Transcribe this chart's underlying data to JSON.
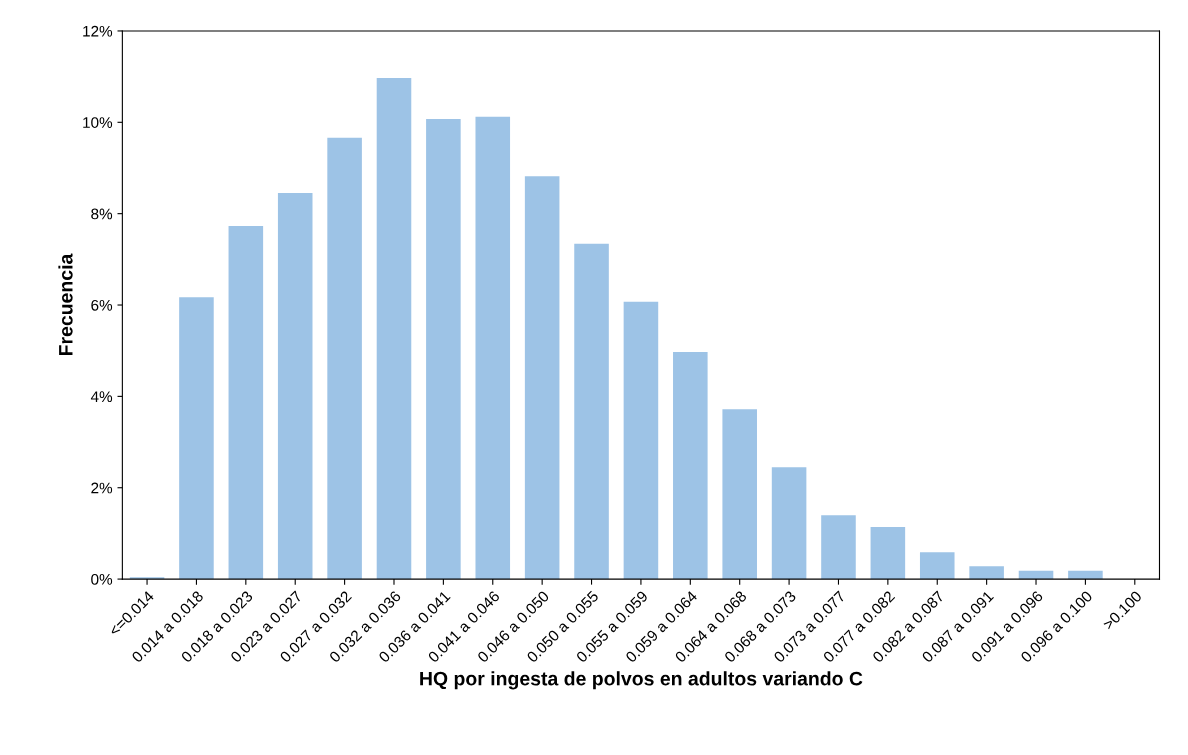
{
  "chart_data": {
    "type": "bar",
    "xlabel": "HQ por ingesta de polvos en adultos variando C",
    "ylabel": "Frecuencia",
    "categories": [
      "<=0.014",
      "0.014 a 0.018",
      "0.018 a 0.023",
      "0.023 a 0.027",
      "0.027 a 0.032",
      "0.032 a 0.036",
      "0.036 a 0.041",
      "0.041 a 0.046",
      "0.046 a 0.050",
      "0.050 a 0.055",
      "0.055 a 0.059",
      "0.059 a 0.064",
      "0.064 a 0.068",
      "0.068 a 0.073",
      "0.073 a 0.077",
      "0.077 a 0.082",
      "0.082 a 0.087",
      "0.087 a 0.091",
      "0.091 a 0.096",
      "0.096 a 0.100",
      ">0.100"
    ],
    "values": [
      0.04,
      6.17,
      7.73,
      8.45,
      9.66,
      10.97,
      10.07,
      10.12,
      8.82,
      7.34,
      6.07,
      4.97,
      3.72,
      2.45,
      1.4,
      1.14,
      0.59,
      0.28,
      0.18,
      0.18,
      0
    ],
    "color": "#9dc3e6",
    "ylim": [
      0,
      12
    ],
    "yticks": [
      {
        "value": 0,
        "label": "0%"
      },
      {
        "value": 2,
        "label": "2%"
      },
      {
        "value": 4,
        "label": "4%"
      },
      {
        "value": 6,
        "label": "6%"
      },
      {
        "value": 8,
        "label": "8%"
      },
      {
        "value": 10,
        "label": "10%"
      },
      {
        "value": 12,
        "label": "12%"
      }
    ],
    "grid": false,
    "legend": false
  }
}
